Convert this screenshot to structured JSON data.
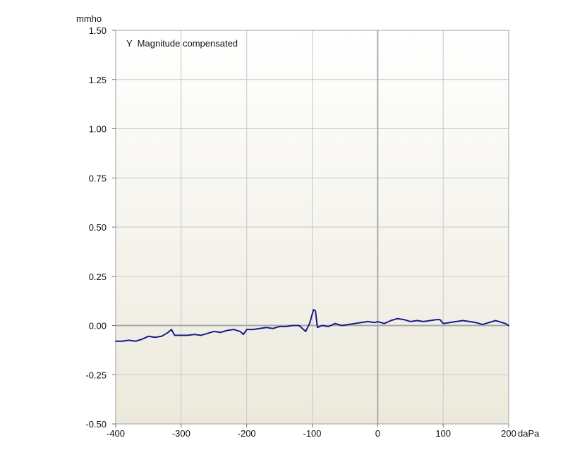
{
  "chart_data": {
    "type": "line",
    "title": "",
    "annotation": "Y  Magnitude compensated",
    "y_unit": "mmho",
    "x_unit": "daPa",
    "xlim": [
      -400,
      200
    ],
    "ylim": [
      -0.5,
      1.5
    ],
    "x_ticks": [
      "-400",
      "-300",
      "-200",
      "-100",
      "0",
      "100",
      "200"
    ],
    "y_ticks": [
      "1.50",
      "1.25",
      "1.00",
      "0.75",
      "0.50",
      "0.25",
      "0.00",
      "-0.25",
      "-0.50"
    ],
    "x_tick_values": [
      -400,
      -300,
      -200,
      -100,
      0,
      100,
      200
    ],
    "y_tick_values": [
      1.5,
      1.25,
      1.0,
      0.75,
      0.5,
      0.25,
      0.0,
      -0.25,
      -0.5
    ],
    "grid": true,
    "colors": {
      "line": "#1a1a8c",
      "grid": "#c8c8c8",
      "zero_line": "#a8a8a8",
      "plot_bg_top": "#ffffff",
      "plot_bg_bottom": "#ece9dc"
    },
    "series": [
      {
        "values": [
          [
            -400,
            -0.08
          ],
          [
            -390,
            -0.08
          ],
          [
            -380,
            -0.075
          ],
          [
            -370,
            -0.08
          ],
          [
            -360,
            -0.07
          ],
          [
            -350,
            -0.055
          ],
          [
            -340,
            -0.06
          ],
          [
            -330,
            -0.055
          ],
          [
            -320,
            -0.035
          ],
          [
            -315,
            -0.02
          ],
          [
            -310,
            -0.05
          ],
          [
            -300,
            -0.05
          ],
          [
            -290,
            -0.05
          ],
          [
            -280,
            -0.045
          ],
          [
            -270,
            -0.05
          ],
          [
            -260,
            -0.04
          ],
          [
            -250,
            -0.03
          ],
          [
            -240,
            -0.035
          ],
          [
            -230,
            -0.025
          ],
          [
            -220,
            -0.02
          ],
          [
            -210,
            -0.03
          ],
          [
            -205,
            -0.045
          ],
          [
            -200,
            -0.02
          ],
          [
            -190,
            -0.02
          ],
          [
            -180,
            -0.015
          ],
          [
            -170,
            -0.01
          ],
          [
            -160,
            -0.015
          ],
          [
            -150,
            -0.005
          ],
          [
            -140,
            -0.005
          ],
          [
            -130,
            0.0
          ],
          [
            -120,
            0.0
          ],
          [
            -110,
            -0.03
          ],
          [
            -104,
            0.01
          ],
          [
            -98,
            0.08
          ],
          [
            -95,
            0.075
          ],
          [
            -92,
            -0.01
          ],
          [
            -85,
            0.0
          ],
          [
            -75,
            -0.005
          ],
          [
            -65,
            0.01
          ],
          [
            -55,
            0.0
          ],
          [
            -45,
            0.005
          ],
          [
            -35,
            0.01
          ],
          [
            -25,
            0.015
          ],
          [
            -15,
            0.02
          ],
          [
            -5,
            0.015
          ],
          [
            0,
            0.02
          ],
          [
            10,
            0.01
          ],
          [
            20,
            0.025
          ],
          [
            30,
            0.035
          ],
          [
            40,
            0.03
          ],
          [
            50,
            0.02
          ],
          [
            60,
            0.025
          ],
          [
            70,
            0.02
          ],
          [
            80,
            0.025
          ],
          [
            90,
            0.03
          ],
          [
            95,
            0.03
          ],
          [
            100,
            0.01
          ],
          [
            110,
            0.015
          ],
          [
            120,
            0.02
          ],
          [
            130,
            0.025
          ],
          [
            140,
            0.02
          ],
          [
            150,
            0.015
          ],
          [
            160,
            0.005
          ],
          [
            165,
            0.01
          ],
          [
            170,
            0.015
          ],
          [
            180,
            0.025
          ],
          [
            190,
            0.015
          ],
          [
            195,
            0.01
          ],
          [
            200,
            0.0
          ]
        ]
      }
    ]
  }
}
